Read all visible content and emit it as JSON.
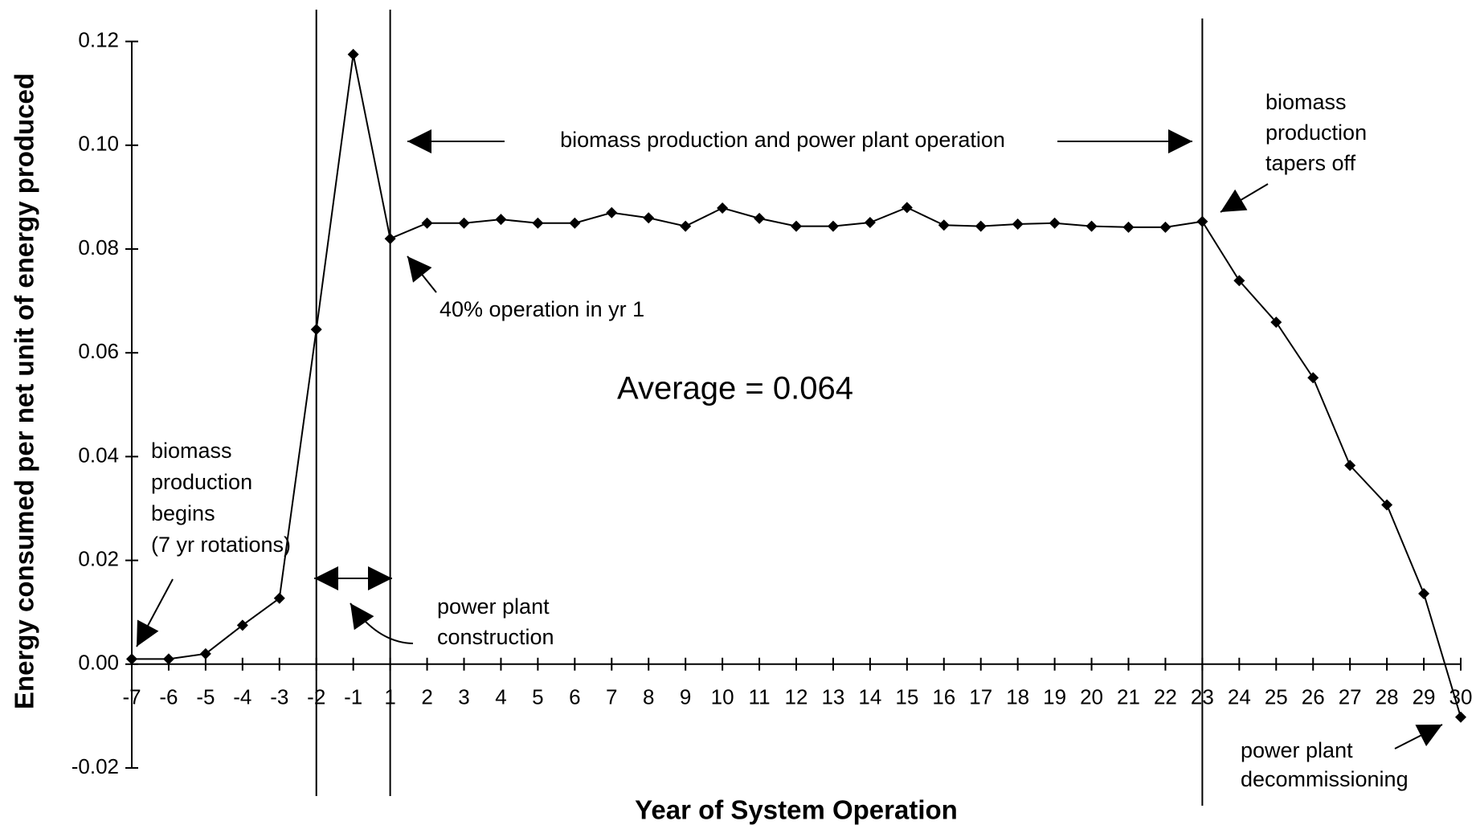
{
  "chart_data": {
    "type": "line",
    "x_label": "Year of System Operation",
    "y_label": "Energy consumed per net unit of energy produced",
    "categories": [
      "-7",
      "-6",
      "-5",
      "-4",
      "-3",
      "-2",
      "-1",
      "1",
      "2",
      "3",
      "4",
      "5",
      "6",
      "7",
      "8",
      "9",
      "10",
      "11",
      "12",
      "13",
      "14",
      "15",
      "16",
      "17",
      "18",
      "19",
      "20",
      "21",
      "22",
      "23",
      "24",
      "25",
      "26",
      "27",
      "28",
      "29",
      "30"
    ],
    "values": [
      0.001,
      0.001,
      0.002,
      0.0075,
      0.0127,
      0.0645,
      0.1175,
      0.082,
      0.085,
      0.085,
      0.0857,
      0.085,
      0.085,
      0.087,
      0.086,
      0.0844,
      0.0879,
      0.0859,
      0.0844,
      0.0844,
      0.0851,
      0.088,
      0.0846,
      0.0844,
      0.0848,
      0.085,
      0.0844,
      0.0842,
      0.0842,
      0.0853,
      0.0739,
      0.0659,
      0.0552,
      0.0383,
      0.0307,
      0.0136,
      -0.0102
    ],
    "color": "#000000",
    "ylim": [
      -0.02,
      0.12
    ],
    "yticks": [
      {
        "value": -0.02,
        "label": "-0.02"
      },
      {
        "value": 0,
        "label": "0.00"
      },
      {
        "value": 0.02,
        "label": "0.02"
      },
      {
        "value": 0.04,
        "label": "0.04"
      },
      {
        "value": 0.06,
        "label": "0.06"
      },
      {
        "value": 0.08,
        "label": "0.08"
      },
      {
        "value": 0.1,
        "label": "0.10"
      },
      {
        "value": 0.12,
        "label": "0.12"
      }
    ],
    "grid": false,
    "annotations": {
      "operation": [
        "biomass production and power plant operation"
      ],
      "tapers": [
        "biomass",
        "production",
        "tapers off"
      ],
      "first_year": [
        "40% operation in yr 1"
      ],
      "average": [
        "Average = 0.064"
      ],
      "begins": [
        "biomass",
        "production",
        "begins",
        "(7 yr rotations)"
      ],
      "construction": [
        "power plant",
        "construction"
      ],
      "decommissioning": [
        "power plant",
        "decommissioning"
      ]
    }
  }
}
